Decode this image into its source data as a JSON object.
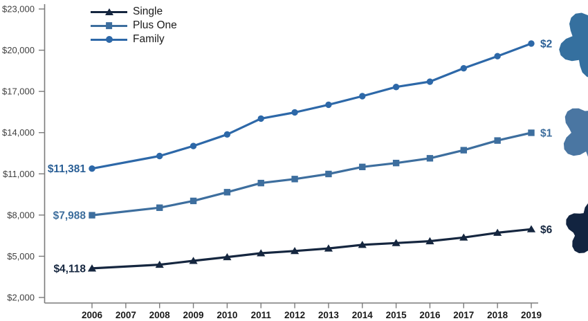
{
  "chart_data": {
    "type": "line",
    "title": "",
    "x_years": [
      2006,
      2008,
      2009,
      2010,
      2011,
      2012,
      2013,
      2014,
      2015,
      2016,
      2017,
      2018,
      2019
    ],
    "x_axis_tick_labels": [
      "2006",
      "2007",
      "2008",
      "2009",
      "2010",
      "2011",
      "2012",
      "2013",
      "2014",
      "2015",
      "2016",
      "2017",
      "2018",
      "2019"
    ],
    "y_axis": {
      "tick_labels": [
        "$2,000",
        "$5,000",
        "$8,000",
        "$11,000",
        "$14,000",
        "$17,000",
        "$20,000",
        "$23,000"
      ],
      "tick_values": [
        2000,
        5000,
        8000,
        11000,
        14000,
        17000,
        20000,
        23000
      ],
      "min": 2000,
      "max": 23000,
      "grid": false
    },
    "legend": {
      "position": "top-left-inside",
      "entries": [
        "Single",
        "Plus One",
        "Family"
      ]
    },
    "series": [
      {
        "name": "Single",
        "marker": "triangle",
        "color": "#15263f",
        "label_color": "#15263f",
        "burst_color": "#122440",
        "values": [
          4118,
          4386,
          4669,
          4940,
          5222,
          5384,
          5571,
          5832,
          5963,
          6101,
          6368,
          6715,
          6972
        ],
        "start_label": "$4,118",
        "end_label_visible": "$6"
      },
      {
        "name": "Plus One",
        "marker": "square",
        "color": "#3d6e9e",
        "label_color": "#3c6d9c",
        "burst_color": "#4a76a2",
        "values": [
          7988,
          8535,
          9030,
          9664,
          10329,
          10621,
          10990,
          11503,
          11787,
          12132,
          12722,
          13425,
          13989
        ],
        "start_label": "$7,988",
        "end_label_visible": "$1"
      },
      {
        "name": "Family",
        "marker": "circle",
        "color": "#2d68a8",
        "label_color": "#2a5f96",
        "burst_color": "#35709f",
        "values": [
          11381,
          12298,
          13027,
          13871,
          15022,
          15473,
          16029,
          16655,
          17322,
          17710,
          18687,
          19565,
          20486
        ],
        "start_label": "$11,381",
        "end_label_visible": "$2"
      }
    ]
  },
  "colors": {
    "axis": "#7a7a7a",
    "y_tick_text": "#404040",
    "x_tick_text": "#1a1a1a",
    "background": "#ffffff"
  }
}
